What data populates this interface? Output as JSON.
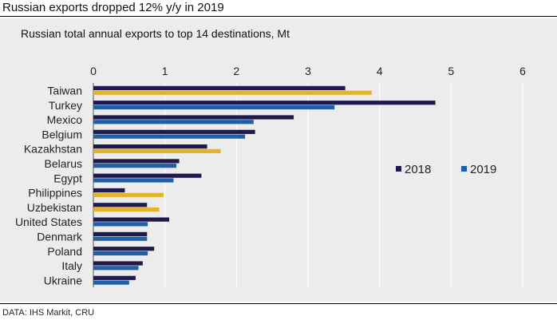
{
  "headline": "Russian exports dropped 12% y/y in 2019",
  "source": "DATA: IHS Markit, CRU",
  "colors": {
    "2018": "#1f1a4d",
    "2019_blue": "#1f5fa8",
    "2019_gold": "#e3b32b",
    "panel_bg": "#ececec",
    "grid": "#ffffff"
  },
  "chart_data": {
    "type": "bar",
    "orientation": "horizontal",
    "title": "Russian total annual exports to top 14 destinations, Mt",
    "xlim": [
      0,
      6
    ],
    "xticks": [
      "0",
      "1",
      "2",
      "3",
      "4",
      "5",
      "6"
    ],
    "grid": true,
    "legend_position": "right",
    "categories": [
      "Taiwan",
      "Turkey",
      "Mexico",
      "Belgium",
      "Kazakhstan",
      "Belarus",
      "Egypt",
      "Philippines",
      "Uzbekistan",
      "United States",
      "Denmark",
      "Poland",
      "Italy",
      "Ukraine"
    ],
    "series": [
      {
        "name": "2018",
        "values": [
          3.52,
          4.78,
          2.8,
          2.26,
          1.59,
          1.2,
          1.51,
          0.44,
          0.75,
          1.06,
          0.75,
          0.85,
          0.69,
          0.59
        ]
      },
      {
        "name": "2019",
        "values": [
          3.89,
          3.37,
          2.24,
          2.12,
          1.78,
          1.16,
          1.12,
          0.98,
          0.92,
          0.76,
          0.75,
          0.76,
          0.63,
          0.5
        ],
        "highlighted_increase": [
          true,
          false,
          false,
          false,
          true,
          false,
          false,
          true,
          true,
          false,
          false,
          false,
          false,
          false
        ]
      }
    ]
  }
}
